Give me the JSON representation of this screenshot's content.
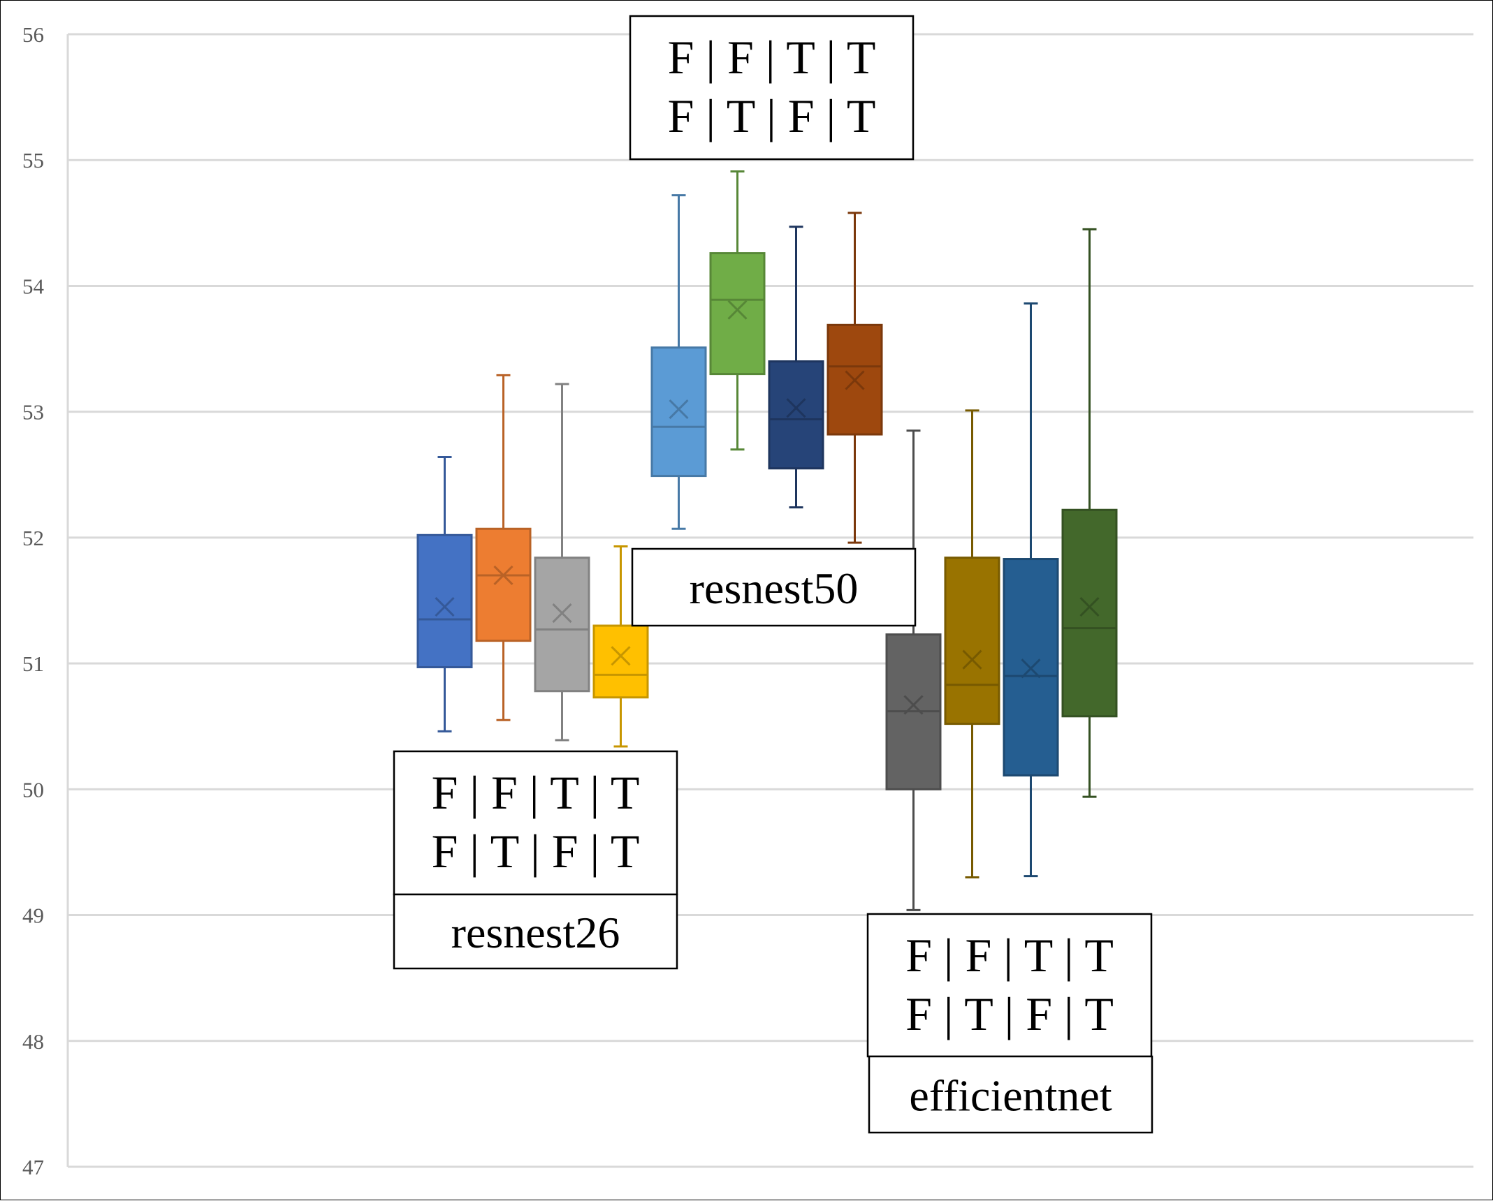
{
  "chart_data": {
    "type": "box",
    "title": "",
    "xlabel": "",
    "ylabel": "",
    "ylim": [
      47,
      56
    ],
    "yticks": [
      "47",
      "48",
      "49",
      "50",
      "51",
      "52",
      "53",
      "54",
      "55",
      "56"
    ],
    "grid": true,
    "groups": [
      {
        "name": "resnest26",
        "flags_line1": "F | F | T | T",
        "flags_line2": "F | T | F | T",
        "boxes": [
          {
            "color": "#4472C4",
            "min": 50.46,
            "q1": 50.97,
            "median": 51.35,
            "q3": 52.02,
            "max": 52.64,
            "mean": 51.45
          },
          {
            "color": "#ED7D31",
            "min": 50.55,
            "q1": 51.18,
            "median": 51.7,
            "q3": 52.07,
            "max": 53.29,
            "mean": 51.7
          },
          {
            "color": "#A5A5A5",
            "min": 50.39,
            "q1": 50.78,
            "median": 51.27,
            "q3": 51.84,
            "max": 53.22,
            "mean": 51.4
          },
          {
            "color": "#FFC000",
            "min": 50.34,
            "q1": 50.73,
            "median": 50.91,
            "q3": 51.3,
            "max": 51.93,
            "mean": 51.06
          }
        ]
      },
      {
        "name": "resnest50",
        "flags_line1": "F | F | T | T",
        "flags_line2": "F | T | F | T",
        "boxes": [
          {
            "color": "#5B9BD5",
            "min": 52.07,
            "q1": 52.49,
            "median": 52.88,
            "q3": 53.51,
            "max": 54.72,
            "mean": 53.02
          },
          {
            "color": "#70AD47",
            "min": 52.7,
            "q1": 53.3,
            "median": 53.89,
            "q3": 54.26,
            "max": 54.91,
            "mean": 53.81
          },
          {
            "color": "#264478",
            "min": 52.24,
            "q1": 52.55,
            "median": 52.94,
            "q3": 53.4,
            "max": 54.47,
            "mean": 53.03
          },
          {
            "color": "#9E480E",
            "min": 51.96,
            "q1": 52.82,
            "median": 53.36,
            "q3": 53.69,
            "max": 54.58,
            "mean": 53.25
          }
        ]
      },
      {
        "name": "efficientnet",
        "flags_line1": "F | F | T | T",
        "flags_line2": "F | T | F | T",
        "boxes": [
          {
            "color": "#636363",
            "min": 49.04,
            "q1": 50.0,
            "median": 50.62,
            "q3": 51.23,
            "max": 52.85,
            "mean": 50.67
          },
          {
            "color": "#997300",
            "min": 49.3,
            "q1": 50.52,
            "median": 50.83,
            "q3": 51.84,
            "max": 53.01,
            "mean": 51.03
          },
          {
            "color": "#255E91",
            "min": 49.31,
            "q1": 50.11,
            "median": 50.9,
            "q3": 51.83,
            "max": 53.86,
            "mean": 50.96
          },
          {
            "color": "#43682B",
            "min": 49.94,
            "q1": 50.58,
            "median": 51.28,
            "q3": 52.22,
            "max": 54.45,
            "mean": 51.45
          }
        ]
      }
    ]
  }
}
